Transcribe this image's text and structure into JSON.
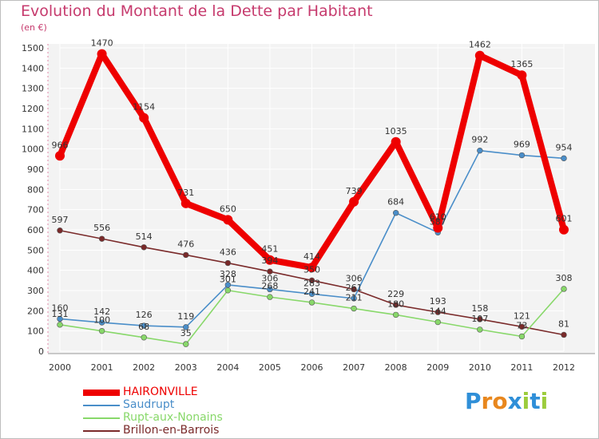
{
  "title": "Evolution du Montant de la Dette par Habitant",
  "unit": "(en €)",
  "logo": {
    "text": "Proxiti",
    "letters": [
      "P",
      "r",
      "o",
      "x",
      "i",
      "t",
      "i"
    ],
    "colors": [
      "#2f8fd8",
      "#e8871e",
      "#e8871e",
      "#2f8fd8",
      "#9ccc3c",
      "#2f8fd8",
      "#9ccc3c"
    ]
  },
  "chart_data": {
    "type": "line",
    "title": "Evolution du Montant de la Dette par Habitant",
    "ylabel": "(en €)",
    "xlabel": "",
    "x": [
      "2000",
      "2001",
      "2002",
      "2003",
      "2004",
      "2005",
      "2006",
      "2007",
      "2008",
      "2009",
      "2010",
      "2011",
      "2012"
    ],
    "ylim": [
      0,
      1500
    ],
    "yticks": [
      "0",
      "100",
      "200",
      "300",
      "400",
      "500",
      "600",
      "700",
      "800",
      "900",
      "1000",
      "1100",
      "1200",
      "1300",
      "1400",
      "1500"
    ],
    "grid": true,
    "legend": "bottom-left",
    "series": [
      {
        "name": "HAIRONVILLE",
        "color": "#ee0000",
        "values": [
          966,
          1470,
          1154,
          731,
          650,
          451,
          414,
          739,
          1035,
          610,
          1462,
          1365,
          601
        ]
      },
      {
        "name": "Saudrupt",
        "color": "#4a8ec9",
        "values": [
          160,
          142,
          126,
          119,
          328,
          306,
          283,
          261,
          684,
          587,
          992,
          969,
          954
        ]
      },
      {
        "name": "Rupt-aux-Nonains",
        "color": "#88d86a",
        "values": [
          131,
          100,
          68,
          35,
          301,
          268,
          241,
          211,
          180,
          144,
          107,
          73,
          308
        ]
      },
      {
        "name": "Brillon-en-Barrois",
        "color": "#7a2a2a",
        "values": [
          597,
          556,
          514,
          476,
          436,
          394,
          350,
          306,
          229,
          193,
          158,
          121,
          81
        ]
      }
    ]
  }
}
